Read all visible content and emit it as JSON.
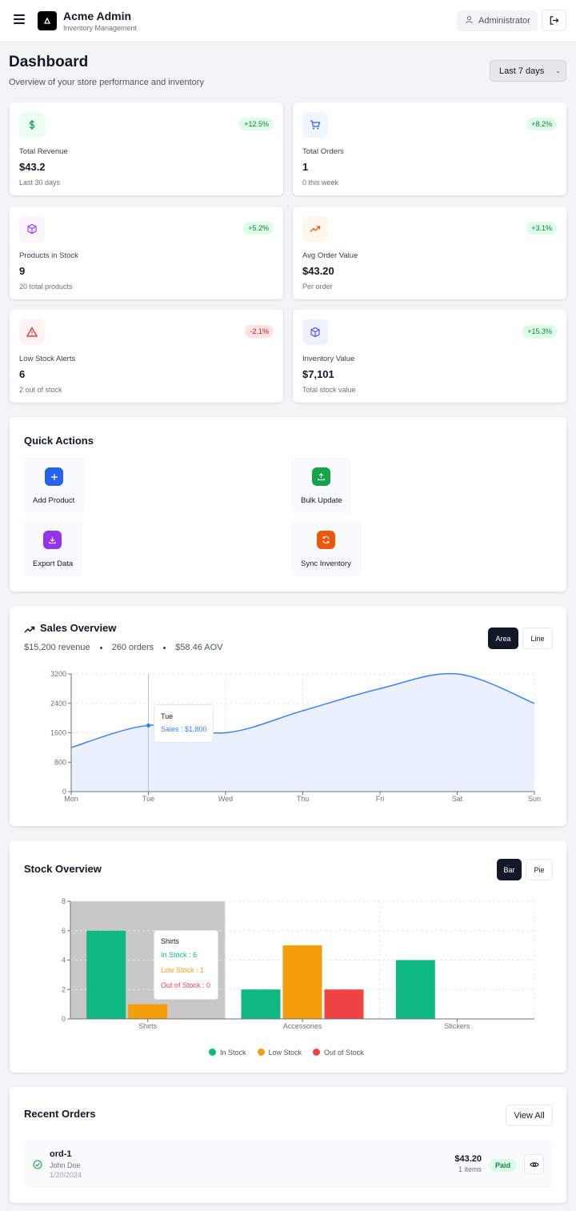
{
  "header": {
    "app_name": "Acme Admin",
    "app_subtitle": "Inventory Management",
    "user_label": "Administrator"
  },
  "page": {
    "title": "Dashboard",
    "subtitle": "Overview of your store performance and inventory",
    "range": "Last 7 days"
  },
  "stats": [
    {
      "label": "Total Revenue",
      "value": "$43.2",
      "sub": "Last 30 days",
      "change": "+12.5%",
      "icon": "dollar-icon"
    },
    {
      "label": "Total Orders",
      "value": "1",
      "sub": "0 this week",
      "change": "+8.2%",
      "icon": "cart-icon"
    },
    {
      "label": "Products in Stock",
      "value": "9",
      "sub": "20 total products",
      "change": "+5.2%",
      "icon": "box-icon"
    },
    {
      "label": "Avg Order Value",
      "value": "$43.20",
      "sub": "Per order",
      "change": "+3.1%",
      "icon": "trend-up-icon"
    },
    {
      "label": "Low Stock Alerts",
      "value": "6",
      "sub": "2 out of stock",
      "change": "-2.1%",
      "icon": "alert-icon"
    },
    {
      "label": "Inventory Value",
      "value": "$7,101",
      "sub": "Total stock value",
      "change": "+15.3%",
      "icon": "cube-icon"
    }
  ],
  "quick_actions": {
    "title": "Quick Actions",
    "items": [
      {
        "label": "Add Product",
        "icon": "plus-icon",
        "color": "#2563eb"
      },
      {
        "label": "Bulk Update",
        "icon": "upload-icon",
        "color": "#16a34a"
      },
      {
        "label": "Export Data",
        "icon": "download-icon",
        "color": "#9333ea"
      },
      {
        "label": "Sync Inventory",
        "icon": "refresh-icon",
        "color": "#ea580c"
      }
    ]
  },
  "sales": {
    "title": "Sales Overview",
    "revenue": "$15,200 revenue",
    "orders": "260 orders",
    "aov": "$58.46 AOV",
    "toggle_area": "Area",
    "toggle_line": "Line",
    "tooltip_day": "Tue",
    "tooltip_value": "Sales : $1,800"
  },
  "stock": {
    "title": "Stock Overview",
    "toggle_bar": "Bar",
    "toggle_pie": "Pie",
    "tooltip_title": "Shirts",
    "tooltip_in": "In Stock : 6",
    "tooltip_low": "Low Stock : 1",
    "tooltip_out": "Out of Stock : 0"
  },
  "orders": {
    "title": "Recent Orders",
    "view_all": "View All",
    "items": [
      {
        "id": "ord-1",
        "customer": "John Doe",
        "date": "1/20/2024",
        "total": "$43.20",
        "count": "1 items",
        "status": "Paid"
      }
    ]
  },
  "chart_data": [
    {
      "type": "area",
      "categories": [
        "Mon",
        "Tue",
        "Wed",
        "Thu",
        "Fri",
        "Sat",
        "Sun"
      ],
      "series": [
        {
          "name": "Sales",
          "values": [
            1200,
            1800,
            1600,
            2200,
            2800,
            3200,
            2400
          ]
        }
      ],
      "yticks": [
        0,
        800,
        1600,
        2400,
        3200
      ],
      "ylim": [
        0,
        3200
      ],
      "grid": true,
      "color": "#3b82f6",
      "fill": "#eaf1fc"
    },
    {
      "type": "bar",
      "categories": [
        "Shirts",
        "Accessories",
        "Stickers"
      ],
      "series": [
        {
          "name": "In Stock",
          "values": [
            6,
            2,
            4
          ],
          "color": "#10b981"
        },
        {
          "name": "Low Stock",
          "values": [
            1,
            5,
            0
          ],
          "color": "#f59e0b"
        },
        {
          "name": "Out of Stock",
          "values": [
            0,
            2,
            0
          ],
          "color": "#ef4444"
        }
      ],
      "yticks": [
        0,
        2,
        4,
        6,
        8
      ],
      "ylim": [
        0,
        8
      ],
      "grid": true,
      "legend": "bottom"
    }
  ]
}
